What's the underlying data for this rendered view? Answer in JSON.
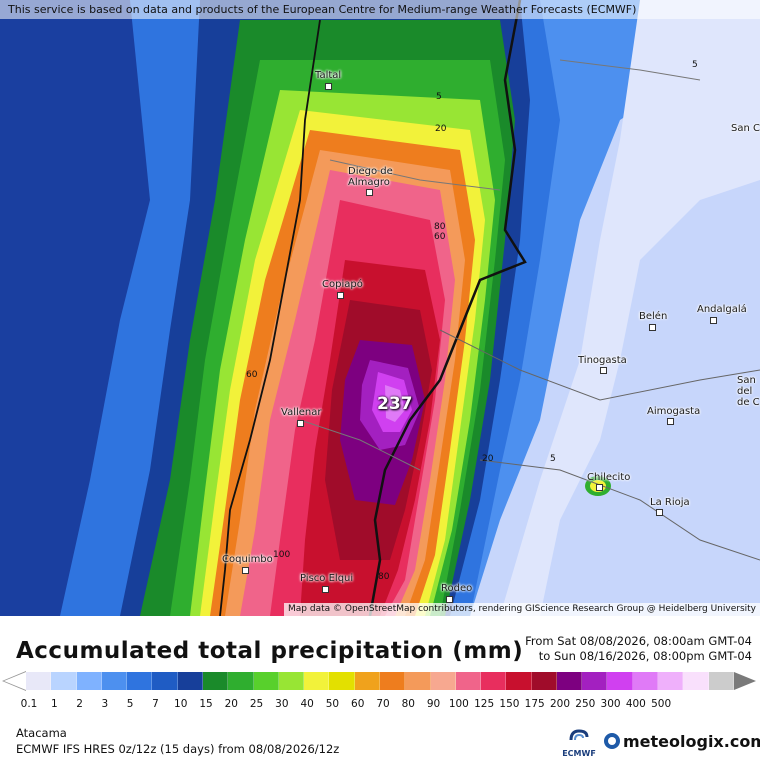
{
  "map": {
    "disclaimer": "This service is based on data and products of the European Centre for Medium-range Weather Forecasts (ECMWF)",
    "attribution": "Map data © OpenStreetMap contributors, rendering GIScience Research Group @ Heidelberg University",
    "max_value": "237",
    "cities": [
      {
        "name": "Taltal"
      },
      {
        "name": "Diego de"
      },
      {
        "name": "Almagro"
      },
      {
        "name": "Copiapó"
      },
      {
        "name": "Vallenar"
      },
      {
        "name": "Coquimbo"
      },
      {
        "name": "Pisco Elqui"
      },
      {
        "name": "Rodeo"
      },
      {
        "name": "Belén"
      },
      {
        "name": "Andalgalá"
      },
      {
        "name": "Tinogasta"
      },
      {
        "name": "Aimogasta"
      },
      {
        "name": "Chilecito"
      },
      {
        "name": "La Rioja"
      },
      {
        "name": "San C"
      },
      {
        "name": "San"
      },
      {
        "name": "del"
      },
      {
        "name": "de C"
      }
    ],
    "contour_labels": [
      "5",
      "20",
      "5",
      "80",
      "60",
      "60",
      "20",
      "5",
      "100",
      "80"
    ]
  },
  "legend": {
    "title": "Accumulated total precipitation (mm)",
    "period_from": "From Sat 08/08/2026, 08:00am GMT-04",
    "period_to": "to Sun 08/16/2026, 08:00pm GMT-04",
    "colors": [
      "#e8e8f8",
      "#b9d4ff",
      "#7fb2ff",
      "#4d90ef",
      "#2f74df",
      "#1f5cc4",
      "#173f9a",
      "#1a8a2a",
      "#2fae2f",
      "#58d02c",
      "#98e534",
      "#f2f23a",
      "#e3e000",
      "#f0a21c",
      "#ee7d1e",
      "#f49a5a",
      "#f7a890",
      "#f0648a",
      "#e82e5e",
      "#c8102e",
      "#a00c2a",
      "#7d0080",
      "#a320c0",
      "#d040f0",
      "#e07af7",
      "#efb0fb",
      "#f9e0fc",
      "#cccccc"
    ],
    "ticks": [
      "0.1",
      "1",
      "2",
      "3",
      "5",
      "7",
      "10",
      "15",
      "20",
      "25",
      "30",
      "40",
      "50",
      "60",
      "70",
      "80",
      "90",
      "100",
      "125",
      "150",
      "175",
      "200",
      "250",
      "300",
      "400",
      "500"
    ]
  },
  "footer": {
    "region": "Atacama",
    "model_info": "ECMWF IFS HRES 0z/12z (15 days)  from  08/08/2026/12z",
    "ecmwf_logo": "ECMWF",
    "brand": "meteologix.com"
  }
}
